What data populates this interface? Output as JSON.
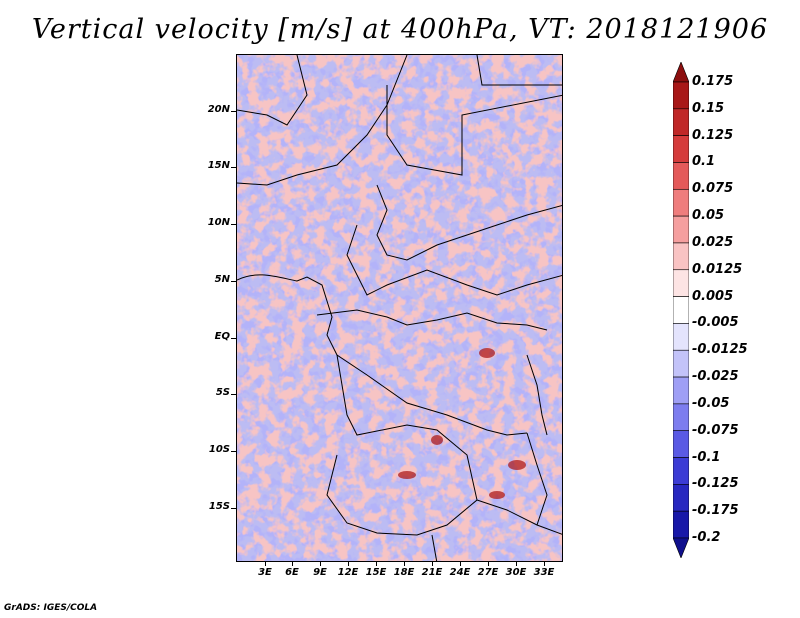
{
  "title": "Vertical velocity [m/s] at 400hPa, VT: 2018121906",
  "credit": "GrADS: IGES/COLA",
  "map": {
    "lat_labels": [
      "20N",
      "15N",
      "10N",
      "5N",
      "EQ",
      "5S",
      "10S",
      "15S"
    ],
    "lon_labels": [
      "3E",
      "6E",
      "9E",
      "12E",
      "15E",
      "18E",
      "21E",
      "24E",
      "27E",
      "30E",
      "33E"
    ]
  },
  "colorbar": {
    "labels": [
      "0.175",
      "0.15",
      "0.125",
      "0.1",
      "0.075",
      "0.05",
      "0.025",
      "0.0125",
      "0.005",
      "-0.005",
      "-0.0125",
      "-0.025",
      "-0.05",
      "-0.075",
      "-0.1",
      "-0.125",
      "-0.175",
      "-0.2"
    ],
    "colors": [
      "#8c0f0f",
      "#a81818",
      "#c02828",
      "#d53c3c",
      "#e45a5a",
      "#ef7d7d",
      "#f59f9f",
      "#f9c3c3",
      "#fde4e4",
      "#ffffff",
      "#e4e4fd",
      "#c3c3f9",
      "#9f9ff5",
      "#7d7def",
      "#5a5ae4",
      "#3c3cd5",
      "#2828c0",
      "#1818a8",
      "#0f0f8c"
    ]
  }
}
